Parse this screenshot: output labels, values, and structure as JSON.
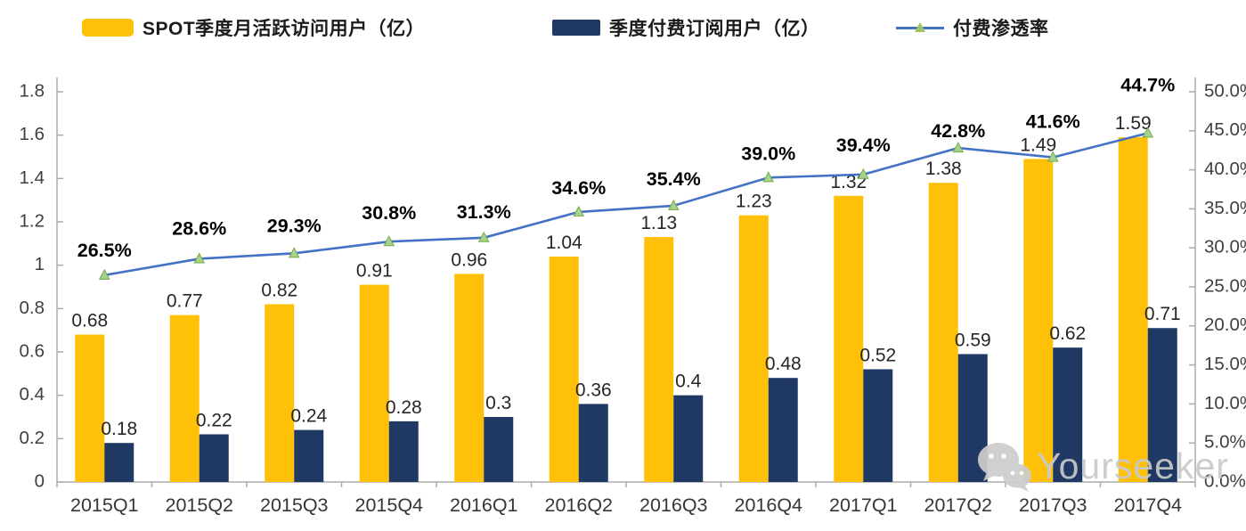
{
  "legend": {
    "items": [
      {
        "label": "SPOT季度月活跃访问用户（亿）",
        "swatch": "bar",
        "color": "#FFC008"
      },
      {
        "label": "季度付费订阅用户（亿）",
        "swatch": "bar",
        "color": "#1F3864"
      },
      {
        "label": "付费渗透率",
        "swatch": "line",
        "color": "#4472C4",
        "marker_color": "#9DC566"
      }
    ]
  },
  "watermark": {
    "text": "Yourseeker",
    "icon": "wechat-icon"
  },
  "colors": {
    "bar_mau": "#FFC008",
    "bar_subs": "#1F3864",
    "line": "#4472C4",
    "marker_fill": "#A9D18E",
    "marker_edge": "#70AD47",
    "axis": "#ABABAB",
    "tick_label": "#3f3f3f",
    "value_label": "#262626",
    "pct_label": "#000000"
  },
  "chart_data": {
    "type": "bar",
    "subtype": "combo bar + line, dual axis",
    "title": "",
    "xlabel": "",
    "ylabel_left": "",
    "ylabel_right": "",
    "grid": false,
    "legend_position": "top",
    "categories": [
      "2015Q1",
      "2015Q2",
      "2015Q3",
      "2015Q4",
      "2016Q1",
      "2016Q2",
      "2016Q3",
      "2016Q4",
      "2017Q1",
      "2017Q2",
      "2017Q3",
      "2017Q4"
    ],
    "series": [
      {
        "name": "SPOT季度月活跃访问用户（亿）",
        "type": "bar",
        "axis": "left",
        "color": "#FFC008",
        "values": [
          0.68,
          0.77,
          0.82,
          0.91,
          0.96,
          1.04,
          1.13,
          1.23,
          1.32,
          1.38,
          1.49,
          1.59
        ],
        "labels": [
          "0.68",
          "0.77",
          "0.82",
          "0.91",
          "0.96",
          "1.04",
          "1.13",
          "1.23",
          "1.32",
          "1.38",
          "1.49",
          "1.59"
        ]
      },
      {
        "name": "季度付费订阅用户（亿）",
        "type": "bar",
        "axis": "left",
        "color": "#1F3864",
        "values": [
          0.18,
          0.22,
          0.24,
          0.28,
          0.3,
          0.36,
          0.4,
          0.48,
          0.52,
          0.59,
          0.62,
          0.71
        ],
        "labels": [
          "0.18",
          "0.22",
          "0.24",
          "0.28",
          "0.3",
          "0.36",
          "0.4",
          "0.48",
          "0.52",
          "0.59",
          "0.62",
          "0.71"
        ]
      },
      {
        "name": "付费渗透率",
        "type": "line",
        "axis": "right",
        "color": "#4472C4",
        "values": [
          26.5,
          28.6,
          29.3,
          30.8,
          31.3,
          34.6,
          35.4,
          39.0,
          39.4,
          42.8,
          41.6,
          44.7
        ],
        "labels": [
          "26.5%",
          "28.6%",
          "29.3%",
          "30.8%",
          "31.3%",
          "34.6%",
          "35.4%",
          "39.0%",
          "39.4%",
          "42.8%",
          "41.6%",
          "44.7%"
        ]
      }
    ],
    "left_axis": {
      "min": 0,
      "max": 1.8,
      "step": 0.2,
      "ticks": [
        "0",
        "0.2",
        "0.4",
        "0.6",
        "0.8",
        "1",
        "1.2",
        "1.4",
        "1.6",
        "1.8"
      ]
    },
    "right_axis": {
      "min": 0,
      "max": 50,
      "step": 5,
      "ticks": [
        "0.0%",
        "5.0%",
        "10.0%",
        "15.0%",
        "20.0%",
        "25.0%",
        "30.0%",
        "35.0%",
        "40.0%",
        "45.0%",
        "50.0%"
      ]
    }
  }
}
